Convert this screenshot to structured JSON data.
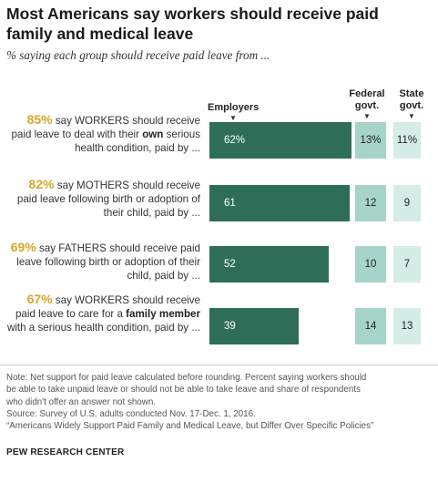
{
  "title": "Most Americans say workers should receive paid family and medical leave",
  "subtitle": "% saying each group should receive paid leave from ...",
  "columns": {
    "employers": "Employers",
    "federal": "Federal govt.",
    "state": "State govt."
  },
  "rows": [
    {
      "pct": "85%",
      "text_before": " say WORKERS should receive paid leave to deal with their ",
      "bold": "own",
      "text_after": " serious health condition, paid by ...",
      "employers_label": "62%",
      "federal_label": "13%",
      "state_label": "11%"
    },
    {
      "pct": "82%",
      "text_before": " say MOTHERS should receive paid leave following birth or adoption of their child, paid by ...",
      "bold": "",
      "text_after": "",
      "employers_label": "61",
      "federal_label": "12",
      "state_label": "9"
    },
    {
      "pct": "69%",
      "text_before": " say FATHERS should receive paid leave following birth or adoption of their child, paid by ...",
      "bold": "",
      "text_after": "",
      "employers_label": "52",
      "federal_label": "10",
      "state_label": "7"
    },
    {
      "pct": "67%",
      "text_before": " say WORKERS should receive paid leave to care for a ",
      "bold": "family member",
      "text_after": " with a serious health condition, paid by ...",
      "employers_label": "39",
      "federal_label": "14",
      "state_label": "13"
    }
  ],
  "note_lines": [
    "Note: Net support for paid leave calculated before rounding. Percent saying workers should",
    "be able to take unpaid leave or should not be able to take leave and share of respondents",
    "who didn't offer an answer not shown.",
    "Source: Survey of U.S. adults conducted Nov. 17-Dec. 1, 2016.",
    "“Americans Widely Support Paid Family and Medical Leave, but Differ Over Specific Policies”"
  ],
  "source_name": "PEW RESEARCH CENTER",
  "colors": {
    "employers": "#2e6e58",
    "federal": "#a6d4c8",
    "state": "#d6ece6",
    "highlight": "#d9a62a"
  },
  "chart_data": {
    "type": "bar",
    "categories": [
      "85% say WORKERS should receive paid leave to deal with their own serious health condition, paid by ...",
      "82% say MOTHERS should receive paid leave following birth or adoption of their child, paid by ...",
      "69% say FATHERS should receive paid leave following birth or adoption of their child, paid by ...",
      "67% say WORKERS should receive paid leave to care for a family member with a serious health condition, paid by ..."
    ],
    "series": [
      {
        "name": "Employers",
        "values": [
          62,
          61,
          52,
          39
        ]
      },
      {
        "name": "Federal govt.",
        "values": [
          13,
          12,
          10,
          14
        ]
      },
      {
        "name": "State govt.",
        "values": [
          11,
          9,
          7,
          13
        ]
      }
    ],
    "unit": "%",
    "orientation": "horizontal"
  }
}
